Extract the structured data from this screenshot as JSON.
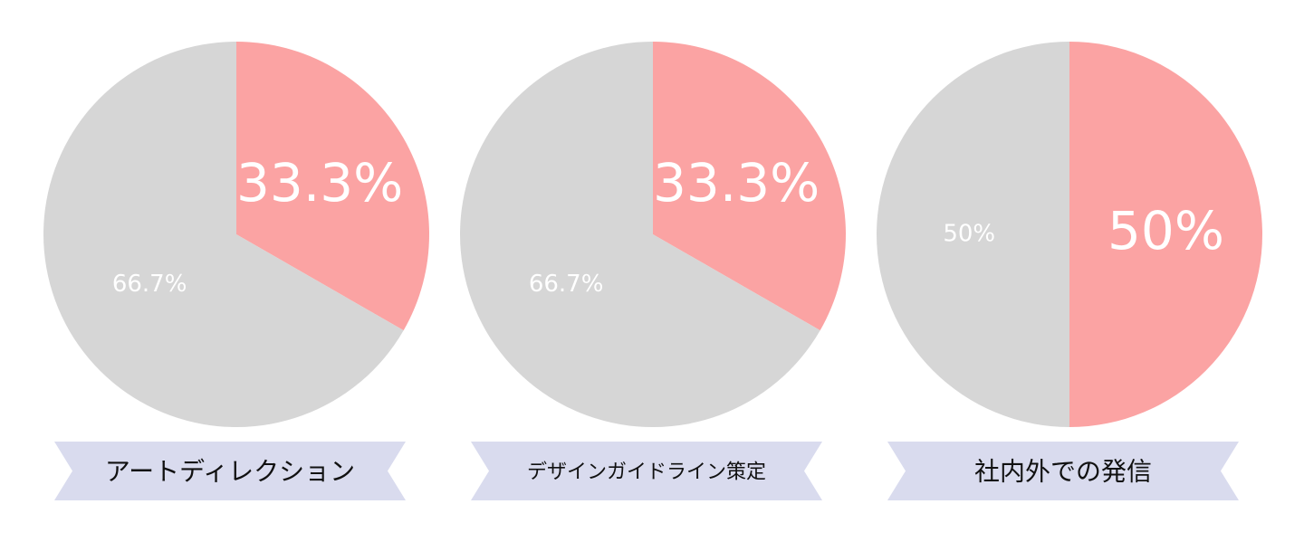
{
  "chart_data": [
    {
      "type": "pie",
      "title": "アートディレクション",
      "values": [
        33.3,
        66.7
      ],
      "value_labels": [
        "33.3%",
        "66.7%"
      ],
      "colors": [
        "#fba3a3",
        "#d6d6d6"
      ]
    },
    {
      "type": "pie",
      "title": "デザインガイドライン策定",
      "values": [
        33.3,
        66.7
      ],
      "value_labels": [
        "33.3%",
        "66.7%"
      ],
      "colors": [
        "#fba3a3",
        "#d6d6d6"
      ]
    },
    {
      "type": "pie",
      "title": "社内外での発信",
      "values": [
        50,
        50
      ],
      "value_labels": [
        "50%",
        "50%"
      ],
      "colors": [
        "#fba3a3",
        "#d6d6d6"
      ]
    }
  ]
}
